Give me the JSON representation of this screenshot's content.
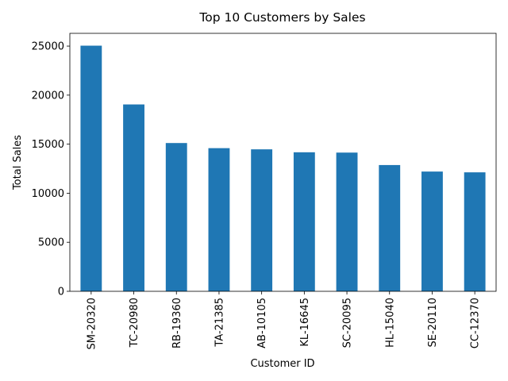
{
  "chart_data": {
    "type": "bar",
    "title": "Top 10 Customers by Sales",
    "xlabel": "Customer ID",
    "ylabel": "Total Sales",
    "categories": [
      "SM-20320",
      "TC-20980",
      "RB-19360",
      "TA-21385",
      "AB-10105",
      "KL-16645",
      "SC-20095",
      "HL-15040",
      "SE-20110",
      "CC-12370"
    ],
    "values": [
      25043,
      19052,
      15117,
      14595,
      14474,
      14175,
      14142,
      12873,
      12209,
      12129
    ],
    "ylim": [
      0,
      26300
    ],
    "yticks": [
      0,
      5000,
      10000,
      15000,
      20000,
      25000
    ],
    "bar_color": "#1f77b4",
    "grid": false,
    "legend": "none"
  }
}
